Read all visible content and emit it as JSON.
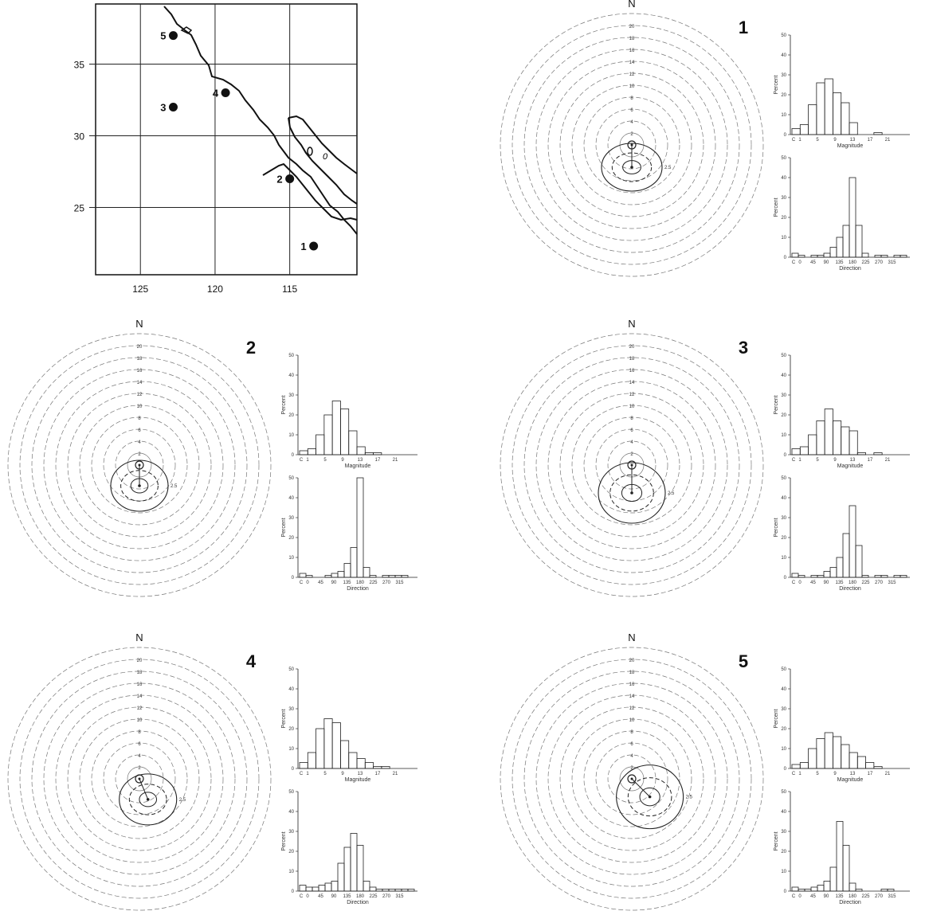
{
  "map": {
    "x_ticks": [
      "125",
      "120",
      "115"
    ],
    "y_ticks": [
      "35",
      "30",
      "25"
    ],
    "sites": [
      {
        "label": "1",
        "lon": 113.4,
        "lat": 22.3
      },
      {
        "label": "2",
        "lon": 115.0,
        "lat": 27.0
      },
      {
        "label": "3",
        "lon": 122.8,
        "lat": 32.0
      },
      {
        "label": "4",
        "lon": 119.3,
        "lat": 33.0
      },
      {
        "label": "5",
        "lon": 122.8,
        "lat": 37.0
      }
    ],
    "annotation": "0"
  },
  "panels": [
    {
      "label": "1",
      "north": "N",
      "ring_labels": [
        "2",
        "4",
        "6",
        "8",
        "10",
        "12",
        "14",
        "16",
        "18",
        "20"
      ],
      "contour_label": "2.5",
      "magnitude_hist": {
        "ylabel": "Percent",
        "xlabel": "Magnitude",
        "y_ticks": [
          "0",
          "10",
          "20",
          "30",
          "40",
          "50"
        ],
        "x_ticks": [
          "C",
          "1",
          "5",
          "9",
          "13",
          "17",
          "21"
        ],
        "values": [
          3,
          5,
          15,
          26,
          28,
          21,
          16,
          6,
          0,
          0,
          1,
          0,
          0,
          0
        ]
      },
      "direction_hist": {
        "ylabel": "Percent",
        "xlabel": "Direction",
        "y_ticks": [
          "0",
          "10",
          "20",
          "30",
          "40",
          "50"
        ],
        "x_ticks": [
          "C",
          "0",
          "45",
          "90",
          "135",
          "180",
          "225",
          "270",
          "315"
        ],
        "values": [
          2,
          1,
          0,
          1,
          1,
          2,
          5,
          10,
          16,
          40,
          16,
          2,
          0,
          1,
          1,
          0,
          1,
          1
        ]
      }
    },
    {
      "label": "2",
      "north": "N",
      "ring_labels": [
        "2",
        "4",
        "6",
        "8",
        "10",
        "12",
        "14",
        "16",
        "18",
        "20"
      ],
      "contour_label": "2.5",
      "magnitude_hist": {
        "ylabel": "Percent",
        "xlabel": "Magnitude",
        "y_ticks": [
          "0",
          "10",
          "20",
          "30",
          "40",
          "50"
        ],
        "x_ticks": [
          "C",
          "1",
          "5",
          "9",
          "13",
          "17",
          "21"
        ],
        "values": [
          2,
          3,
          10,
          20,
          27,
          23,
          12,
          4,
          1,
          1,
          0,
          0,
          0,
          0
        ]
      },
      "direction_hist": {
        "ylabel": "Percent",
        "xlabel": "Direction",
        "y_ticks": [
          "0",
          "10",
          "20",
          "30",
          "40",
          "50"
        ],
        "x_ticks": [
          "C",
          "0",
          "45",
          "90",
          "135",
          "180",
          "225",
          "270",
          "315"
        ],
        "values": [
          2,
          1,
          0,
          0,
          1,
          2,
          3,
          7,
          15,
          50,
          5,
          1,
          0,
          1,
          1,
          1,
          1,
          0
        ]
      }
    },
    {
      "label": "3",
      "north": "N",
      "ring_labels": [
        "2",
        "4",
        "6",
        "8",
        "10",
        "12",
        "14",
        "16",
        "18",
        "20"
      ],
      "contour_label": "2.5",
      "magnitude_hist": {
        "ylabel": "Percent",
        "xlabel": "Magnitude",
        "y_ticks": [
          "0",
          "10",
          "20",
          "30",
          "40",
          "50"
        ],
        "x_ticks": [
          "C",
          "1",
          "5",
          "9",
          "13",
          "17",
          "21"
        ],
        "values": [
          3,
          4,
          10,
          17,
          23,
          17,
          14,
          12,
          1,
          0,
          1,
          0,
          0,
          0
        ]
      },
      "direction_hist": {
        "ylabel": "Percent",
        "xlabel": "Direction",
        "y_ticks": [
          "0",
          "10",
          "20",
          "30",
          "40",
          "50"
        ],
        "x_ticks": [
          "C",
          "0",
          "45",
          "90",
          "135",
          "180",
          "225",
          "270",
          "315"
        ],
        "values": [
          2,
          1,
          0,
          1,
          1,
          3,
          5,
          10,
          22,
          36,
          16,
          1,
          0,
          1,
          1,
          0,
          1,
          1
        ]
      }
    },
    {
      "label": "4",
      "north": "N",
      "ring_labels": [
        "2",
        "4",
        "6",
        "8",
        "10",
        "12",
        "14",
        "16",
        "18",
        "20"
      ],
      "contour_label": "2.5",
      "magnitude_hist": {
        "ylabel": "Percent",
        "xlabel": "Magnitude",
        "y_ticks": [
          "0",
          "10",
          "20",
          "30",
          "40",
          "50"
        ],
        "x_ticks": [
          "C",
          "1",
          "5",
          "9",
          "13",
          "17",
          "21"
        ],
        "values": [
          3,
          8,
          20,
          25,
          23,
          14,
          8,
          5,
          3,
          1,
          1,
          0,
          0,
          0
        ]
      },
      "direction_hist": {
        "ylabel": "Percent",
        "xlabel": "Direction",
        "y_ticks": [
          "0",
          "10",
          "20",
          "30",
          "40",
          "50"
        ],
        "x_ticks": [
          "C",
          "0",
          "45",
          "90",
          "135",
          "180",
          "225",
          "270",
          "315"
        ],
        "values": [
          3,
          2,
          2,
          3,
          4,
          5,
          14,
          22,
          29,
          23,
          5,
          2,
          1,
          1,
          1,
          1,
          1,
          1
        ]
      }
    },
    {
      "label": "5",
      "north": "N",
      "ring_labels": [
        "2",
        "4",
        "6",
        "8",
        "10",
        "12",
        "14",
        "16",
        "18",
        "20"
      ],
      "contour_label": "2.5",
      "magnitude_hist": {
        "ylabel": "Percent",
        "xlabel": "Magnitude",
        "y_ticks": [
          "0",
          "10",
          "20",
          "30",
          "40",
          "50"
        ],
        "x_ticks": [
          "C",
          "1",
          "5",
          "9",
          "13",
          "17",
          "21"
        ],
        "values": [
          2,
          3,
          10,
          15,
          18,
          16,
          12,
          8,
          6,
          3,
          1,
          0,
          0,
          0
        ]
      },
      "direction_hist": {
        "ylabel": "Percent",
        "xlabel": "Direction",
        "y_ticks": [
          "0",
          "10",
          "20",
          "30",
          "40",
          "50"
        ],
        "x_ticks": [
          "C",
          "0",
          "45",
          "90",
          "135",
          "180",
          "225",
          "270",
          "315"
        ],
        "values": [
          2,
          1,
          1,
          2,
          3,
          5,
          12,
          35,
          23,
          4,
          1,
          0,
          0,
          0,
          1,
          1,
          0,
          0
        ]
      }
    }
  ],
  "chart_data": [
    {
      "type": "scatter",
      "xlim": [
        128,
        111
      ],
      "ylim": [
        20,
        39
      ],
      "x_ticks": [
        125,
        120,
        115
      ],
      "y_ticks": [
        35,
        30,
        25
      ],
      "points": [
        {
          "label": "1",
          "x": 113.4,
          "y": 22.3
        },
        {
          "label": "2",
          "x": 115.0,
          "y": 27.0
        },
        {
          "label": "3",
          "x": 122.8,
          "y": 32.0
        },
        {
          "label": "4",
          "x": 119.3,
          "y": 33.0
        },
        {
          "label": "5",
          "x": 122.8,
          "y": 37.0
        }
      ]
    },
    {
      "type": "bar",
      "title": "1",
      "xlabel": "Magnitude",
      "ylabel": "Percent",
      "ylim": [
        0,
        50
      ],
      "values": [
        3,
        5,
        15,
        26,
        28,
        21,
        16,
        6,
        0,
        0,
        1,
        0,
        0,
        0
      ]
    },
    {
      "type": "bar",
      "title": "1",
      "xlabel": "Direction",
      "ylabel": "Percent",
      "ylim": [
        0,
        50
      ],
      "values": [
        2,
        1,
        0,
        1,
        1,
        2,
        5,
        10,
        16,
        40,
        16,
        2,
        0,
        1,
        1,
        0,
        1,
        1
      ]
    },
    {
      "type": "bar",
      "title": "2",
      "xlabel": "Magnitude",
      "ylabel": "Percent",
      "ylim": [
        0,
        50
      ],
      "values": [
        2,
        3,
        10,
        20,
        27,
        23,
        12,
        4,
        1,
        1,
        0,
        0,
        0,
        0
      ]
    },
    {
      "type": "bar",
      "title": "2",
      "xlabel": "Direction",
      "ylabel": "Percent",
      "ylim": [
        0,
        50
      ],
      "values": [
        2,
        1,
        0,
        0,
        1,
        2,
        3,
        7,
        15,
        50,
        5,
        1,
        0,
        1,
        1,
        1,
        1,
        0
      ]
    },
    {
      "type": "bar",
      "title": "3",
      "xlabel": "Magnitude",
      "ylabel": "Percent",
      "ylim": [
        0,
        50
      ],
      "values": [
        3,
        4,
        10,
        17,
        23,
        17,
        14,
        12,
        1,
        0,
        1,
        0,
        0,
        0
      ]
    },
    {
      "type": "bar",
      "title": "3",
      "xlabel": "Direction",
      "ylabel": "Percent",
      "ylim": [
        0,
        50
      ],
      "values": [
        2,
        1,
        0,
        1,
        1,
        3,
        5,
        10,
        22,
        36,
        16,
        1,
        0,
        1,
        1,
        0,
        1,
        1
      ]
    },
    {
      "type": "bar",
      "title": "4",
      "xlabel": "Magnitude",
      "ylabel": "Percent",
      "ylim": [
        0,
        50
      ],
      "values": [
        3,
        8,
        20,
        25,
        23,
        14,
        8,
        5,
        3,
        1,
        1,
        0,
        0,
        0
      ]
    },
    {
      "type": "bar",
      "title": "4",
      "xlabel": "Direction",
      "ylabel": "Percent",
      "ylim": [
        0,
        50
      ],
      "values": [
        3,
        2,
        2,
        3,
        4,
        5,
        14,
        22,
        29,
        23,
        5,
        2,
        1,
        1,
        1,
        1,
        1,
        1
      ]
    },
    {
      "type": "bar",
      "title": "5",
      "xlabel": "Magnitude",
      "ylabel": "Percent",
      "ylim": [
        0,
        50
      ],
      "values": [
        2,
        3,
        10,
        15,
        18,
        16,
        12,
        8,
        6,
        3,
        1,
        0,
        0,
        0
      ]
    },
    {
      "type": "bar",
      "title": "5",
      "xlabel": "Direction",
      "ylabel": "Percent",
      "ylim": [
        0,
        50
      ],
      "values": [
        2,
        1,
        1,
        2,
        3,
        5,
        12,
        35,
        23,
        4,
        1,
        0,
        0,
        0,
        1,
        1,
        0,
        0
      ]
    }
  ]
}
